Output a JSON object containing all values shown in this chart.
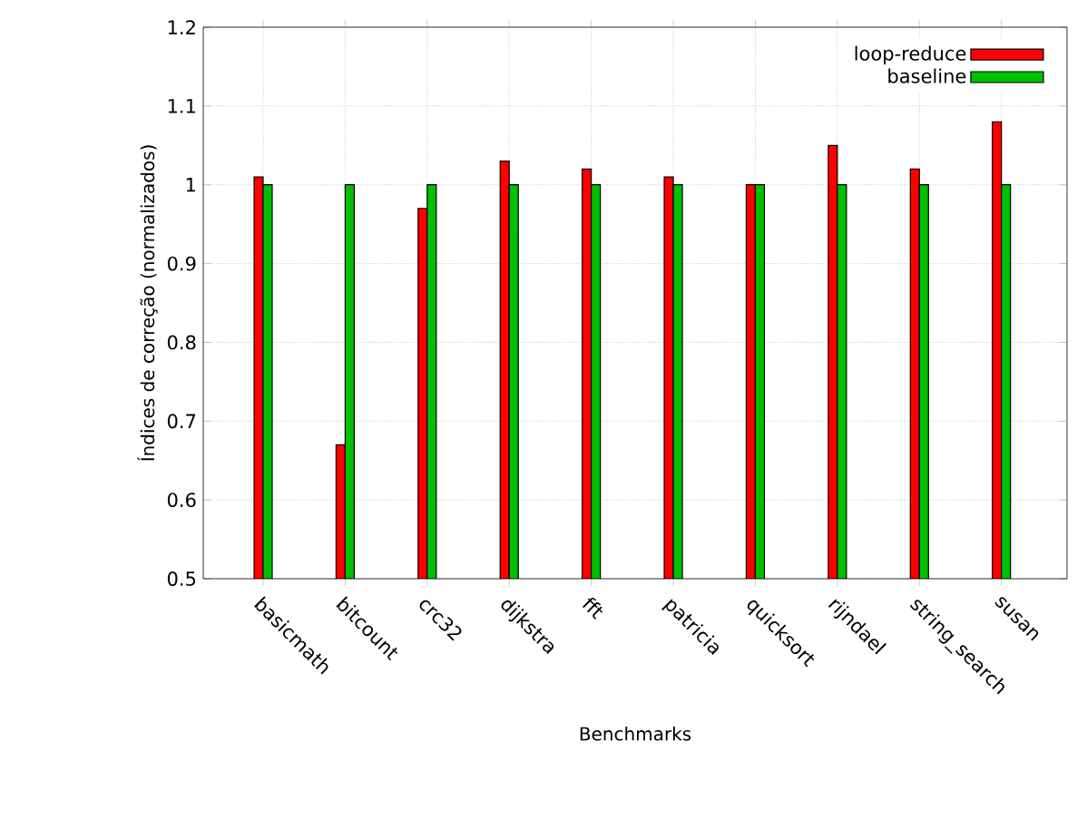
{
  "chart_data": {
    "type": "bar",
    "xlabel": "Benchmarks",
    "ylabel": "Índices de correção (normalizados)",
    "categories": [
      "basicmath",
      "bitcount",
      "crc32",
      "dijkstra",
      "fft",
      "patricia",
      "quicksort",
      "rijndael",
      "string_search",
      "susan"
    ],
    "series": [
      {
        "name": "loop-reduce",
        "color": "#ff0000",
        "values": [
          1.01,
          0.67,
          0.97,
          1.03,
          1.02,
          1.01,
          1.0,
          1.05,
          1.02,
          1.08
        ]
      },
      {
        "name": "baseline",
        "color": "#00c000",
        "values": [
          1.0,
          1.0,
          1.0,
          1.0,
          1.0,
          1.0,
          1.0,
          1.0,
          1.0,
          1.0
        ]
      }
    ],
    "ylim": [
      0.5,
      1.2
    ],
    "yticks": [
      0.5,
      0.6,
      0.7,
      0.8,
      0.9,
      1,
      1.1,
      1.2
    ],
    "grid": true,
    "legend": "top right"
  }
}
